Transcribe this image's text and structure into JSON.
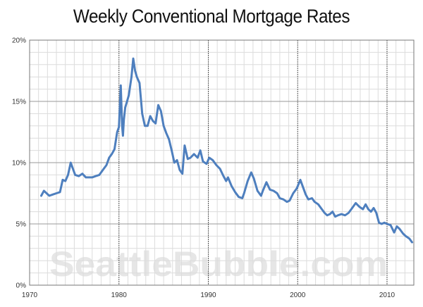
{
  "title": "Weekly Conventional Mortgage Rates",
  "watermark": "SeattleBubble.com",
  "colors": {
    "line": "#4e7fbe",
    "grid_minor": "#dcdcdc",
    "grid_major": "#9a9a9a",
    "decade": "#555555",
    "watermark": "#d2d2d2"
  },
  "chart_data": {
    "type": "line",
    "title": "Weekly Conventional Mortgage Rates",
    "xlabel": "",
    "ylabel": "",
    "xlim": [
      1970,
      2013
    ],
    "ylim": [
      0,
      20
    ],
    "x_ticks": [
      1970,
      1980,
      1990,
      2000,
      2010
    ],
    "y_ticks": [
      "0%",
      "5%",
      "10%",
      "15%",
      "20%"
    ],
    "grid": true,
    "legend": "none",
    "series": [
      {
        "x": [
          1971.3,
          1971.6,
          1971.9,
          1972.2,
          1972.6,
          1973.0,
          1973.4,
          1973.7,
          1974.0,
          1974.3,
          1974.6,
          1974.8,
          1975.1,
          1975.5,
          1975.9,
          1976.3,
          1976.7,
          1977.0,
          1977.4,
          1977.8,
          1978.2,
          1978.6,
          1978.9,
          1979.2,
          1979.5,
          1979.8,
          1980.0,
          1980.2,
          1980.35,
          1980.45,
          1980.55,
          1980.7,
          1980.9,
          1981.1,
          1981.4,
          1981.6,
          1981.8,
          1982.0,
          1982.3,
          1982.6,
          1982.9,
          1983.2,
          1983.5,
          1983.8,
          1984.1,
          1984.4,
          1984.7,
          1985.0,
          1985.3,
          1985.6,
          1985.9,
          1986.2,
          1986.5,
          1986.8,
          1987.1,
          1987.35,
          1987.7,
          1988.0,
          1988.4,
          1988.8,
          1989.1,
          1989.4,
          1989.8,
          1990.1,
          1990.5,
          1990.9,
          1991.3,
          1991.7,
          1992.0,
          1992.2,
          1992.6,
          1993.0,
          1993.4,
          1993.8,
          1994.0,
          1994.4,
          1994.8,
          1995.1,
          1995.5,
          1995.9,
          1996.1,
          1996.5,
          1996.9,
          1997.3,
          1997.7,
          1998.0,
          1998.4,
          1998.8,
          1999.1,
          1999.5,
          1999.9,
          2000.3,
          2000.6,
          2000.9,
          2001.2,
          2001.6,
          2001.9,
          2002.3,
          2002.7,
          2003.0,
          2003.3,
          2003.6,
          2003.9,
          2004.2,
          2004.5,
          2004.9,
          2005.3,
          2005.7,
          2006.0,
          2006.5,
          2006.9,
          2007.3,
          2007.6,
          2007.9,
          2008.2,
          2008.5,
          2008.8,
          2009.1,
          2009.4,
          2009.7,
          2010.0,
          2010.4,
          2010.8,
          2011.1,
          2011.4,
          2011.8,
          2012.1,
          2012.5,
          2012.8
        ],
        "y": [
          7.3,
          7.7,
          7.5,
          7.3,
          7.4,
          7.5,
          7.6,
          8.6,
          8.5,
          9.0,
          10.0,
          9.6,
          9.0,
          8.9,
          9.1,
          8.8,
          8.8,
          8.8,
          8.9,
          9.0,
          9.4,
          9.8,
          10.4,
          10.7,
          11.1,
          12.5,
          12.9,
          16.3,
          13.0,
          12.2,
          13.5,
          14.5,
          15.0,
          15.5,
          17.0,
          18.5,
          17.5,
          17.0,
          16.5,
          14.0,
          13.0,
          13.0,
          13.8,
          13.4,
          13.2,
          14.7,
          14.2,
          13.0,
          12.4,
          11.9,
          11.0,
          10.0,
          10.2,
          9.4,
          9.1,
          11.4,
          10.3,
          10.4,
          10.7,
          10.4,
          11.0,
          10.1,
          9.9,
          10.4,
          10.2,
          9.8,
          9.5,
          8.9,
          8.5,
          8.8,
          8.1,
          7.6,
          7.2,
          7.1,
          7.5,
          8.5,
          9.2,
          8.7,
          7.7,
          7.3,
          7.7,
          8.4,
          7.8,
          7.7,
          7.5,
          7.1,
          7.0,
          6.8,
          6.9,
          7.5,
          7.9,
          8.6,
          8.0,
          7.4,
          7.0,
          7.1,
          6.8,
          6.6,
          6.2,
          5.9,
          5.7,
          5.8,
          6.0,
          5.6,
          5.7,
          5.8,
          5.7,
          5.9,
          6.2,
          6.7,
          6.4,
          6.2,
          6.6,
          6.2,
          6.0,
          6.3,
          5.9,
          5.1,
          5.0,
          5.1,
          5.0,
          4.9,
          4.3,
          4.8,
          4.6,
          4.2,
          4.0,
          3.8,
          3.5
        ]
      }
    ]
  }
}
